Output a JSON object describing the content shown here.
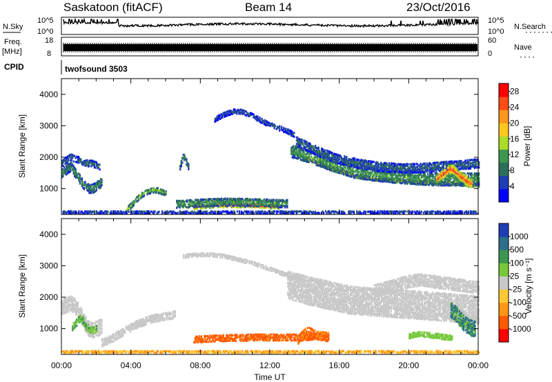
{
  "header": {
    "title": "Saskatoon (fitACF)",
    "beam": "Beam 14",
    "date": "23/Oct/2016"
  },
  "strip_labels": {
    "nsky": "N.Sky",
    "nsearch": "N.Search",
    "freq": "Freq.",
    "freq_unit": "[MHz]",
    "nave": "Nave",
    "cpid": "CPID",
    "cpid_value": "twofsound 3503",
    "nsky_ticks": [
      "10^5",
      "10^0"
    ],
    "nsearch_ticks": [
      "10^5",
      "10^0"
    ],
    "freq_ticks": [
      "18",
      "8"
    ],
    "nave_ticks": [
      "60",
      "0"
    ]
  },
  "colors": {
    "power": [
      "#0000ff",
      "#1e3cb4",
      "#2d6e5a",
      "#3c9650",
      "#aadc28",
      "#ffc81e",
      "#ff961e",
      "#ff4b14",
      "#ff0000"
    ],
    "velocity": [
      "#ff0000",
      "#ff5a00",
      "#ff9614",
      "#ffc832",
      "#c8c8c8",
      "#78c83c",
      "#3c9650",
      "#2d6e8c",
      "#1e3cb4"
    ]
  },
  "chart_data": [
    {
      "type": "heatmap",
      "name": "power",
      "ylabel": "Slant Range [km]",
      "ylim": [
        180,
        4500
      ],
      "yticks": [
        1000,
        2000,
        3000,
        4000
      ],
      "xlim": [
        0,
        24
      ],
      "colorbar_label": "Power [dB]",
      "colorbar_ticks": [
        4,
        8,
        12,
        16,
        20,
        24,
        28
      ],
      "colorbar_range": [
        0,
        30
      ],
      "bands": [
        {
          "t0": 0.0,
          "t1": 2.3,
          "center": [
            1500,
            1600,
            1700,
            1500,
            1300,
            1100,
            1000,
            1000,
            1100,
            1200
          ],
          "width": 300,
          "value": 10
        },
        {
          "t0": 0.0,
          "t1": 2.2,
          "center": [
            1800,
            1900,
            2000,
            1950,
            1900,
            1850,
            1800,
            1800,
            1750,
            1700
          ],
          "width": 220,
          "value": 8
        },
        {
          "t0": 3.7,
          "t1": 6.0,
          "center": [
            300,
            450,
            600,
            750,
            850,
            900,
            950,
            950,
            900,
            850
          ],
          "width": 180,
          "value": 14
        },
        {
          "t0": 7.6,
          "t1": 12.6,
          "center": [
            400,
            440,
            460,
            470,
            470,
            470,
            460,
            450,
            440,
            420
          ],
          "width": 150,
          "value": 28
        },
        {
          "t0": 6.6,
          "t1": 13.0,
          "center": [
            500,
            520,
            540,
            560,
            570,
            570,
            560,
            550,
            530,
            520
          ],
          "width": 260,
          "value": 12
        },
        {
          "t0": 8.8,
          "t1": 13.4,
          "center": [
            3200,
            3350,
            3450,
            3450,
            3350,
            3200,
            3050,
            2950,
            2850,
            2700
          ],
          "width": 160,
          "value": 6
        },
        {
          "t0": 13.2,
          "t1": 24.0,
          "center": [
            2200,
            1900,
            1600,
            1400,
            1300,
            1250,
            1200,
            1200,
            1150,
            1100
          ],
          "width": 120,
          "value": 22
        },
        {
          "t0": 13.2,
          "t1": 24.0,
          "center": [
            2200,
            2000,
            1750,
            1550,
            1450,
            1380,
            1330,
            1300,
            1300,
            1300
          ],
          "width": 420,
          "value": 12
        },
        {
          "t0": 13.5,
          "t1": 24.0,
          "center": [
            2500,
            2200,
            1950,
            1800,
            1700,
            1650,
            1650,
            1700,
            1750,
            1800
          ],
          "width": 300,
          "value": 8
        },
        {
          "t0": 21.6,
          "t1": 23.6,
          "center": [
            1300,
            1400,
            1500,
            1600,
            1600,
            1500,
            1400,
            1300,
            1200,
            1150
          ],
          "width": 300,
          "value": 26
        },
        {
          "t0": 6.8,
          "t1": 7.3,
          "center": [
            1700,
            1800,
            1900,
            2000,
            2000,
            2000,
            1900,
            1800,
            1700,
            1700
          ],
          "width": 200,
          "value": 10
        },
        {
          "t0": 0.0,
          "t1": 24.0,
          "center": [
            250,
            250,
            250,
            250,
            250,
            250,
            250,
            250,
            250,
            250
          ],
          "width": 90,
          "value": 6
        }
      ]
    },
    {
      "type": "heatmap",
      "name": "velocity",
      "ylabel": "Slant Range [km]",
      "xlabel": "Time UT",
      "ylim": [
        180,
        4500
      ],
      "yticks": [
        1000,
        2000,
        3000,
        4000
      ],
      "xlim": [
        0,
        24
      ],
      "xticks": [
        "00:00",
        "04:00",
        "08:00",
        "12:00",
        "16:00",
        "20:00",
        "00:00"
      ],
      "colorbar_label": "Velocity [m s⁻¹]",
      "colorbar_ticks": [
        "1000",
        "500",
        "100",
        "25",
        "-25",
        "-100",
        "-500",
        "-1000"
      ],
      "bands": [
        {
          "t0": 0.0,
          "t1": 2.3,
          "center": [
            1700,
            1750,
            1800,
            1700,
            1500,
            1200,
            1000,
            950,
            1000,
            1100
          ],
          "width": 500,
          "value": 0
        },
        {
          "t0": 0.6,
          "t1": 2.0,
          "center": [
            1050,
            1150,
            1250,
            1350,
            1250,
            1100,
            1000,
            950,
            950,
            1000
          ],
          "width": 240,
          "value": 100
        },
        {
          "t0": 2.3,
          "t1": 6.5,
          "center": [
            550,
            650,
            800,
            950,
            1100,
            1200,
            1300,
            1350,
            1400,
            1450
          ],
          "width": 250,
          "value": 0
        },
        {
          "t0": 7.6,
          "t1": 15.2,
          "center": [
            650,
            680,
            700,
            710,
            720,
            720,
            720,
            720,
            740,
            760
          ],
          "width": 220,
          "value": -150
        },
        {
          "t0": 13.6,
          "t1": 15.4,
          "center": [
            650,
            750,
            850,
            900,
            850,
            800,
            780,
            760,
            740,
            720
          ],
          "width": 300,
          "value": -120
        },
        {
          "t0": 7.0,
          "t1": 14.0,
          "center": [
            3300,
            3350,
            3350,
            3300,
            3200,
            3100,
            2950,
            2800,
            2650,
            2500
          ],
          "width": 130,
          "value": 0
        },
        {
          "t0": 13.0,
          "t1": 24.0,
          "center": [
            2400,
            2200,
            2050,
            1900,
            1850,
            1800,
            1750,
            1700,
            1650,
            1600
          ],
          "width": 900,
          "value": 0
        },
        {
          "t0": 18.0,
          "t1": 24.0,
          "center": [
            2200,
            2300,
            2400,
            2500,
            2550,
            2500,
            2450,
            2400,
            2350,
            2300
          ],
          "width": 400,
          "value": 0
        },
        {
          "t0": 22.4,
          "t1": 23.8,
          "center": [
            1600,
            1550,
            1450,
            1350,
            1250,
            1150,
            1100,
            1050,
            1000,
            1000
          ],
          "width": 500,
          "value": 150
        },
        {
          "t0": 20.0,
          "t1": 22.5,
          "center": [
            750,
            800,
            820,
            820,
            800,
            780,
            760,
            740,
            720,
            700
          ],
          "width": 180,
          "value": 60
        },
        {
          "t0": 0.0,
          "t1": 24.0,
          "center": [
            260,
            260,
            260,
            260,
            260,
            260,
            260,
            260,
            260,
            260
          ],
          "width": 80,
          "value": -60
        }
      ]
    }
  ]
}
